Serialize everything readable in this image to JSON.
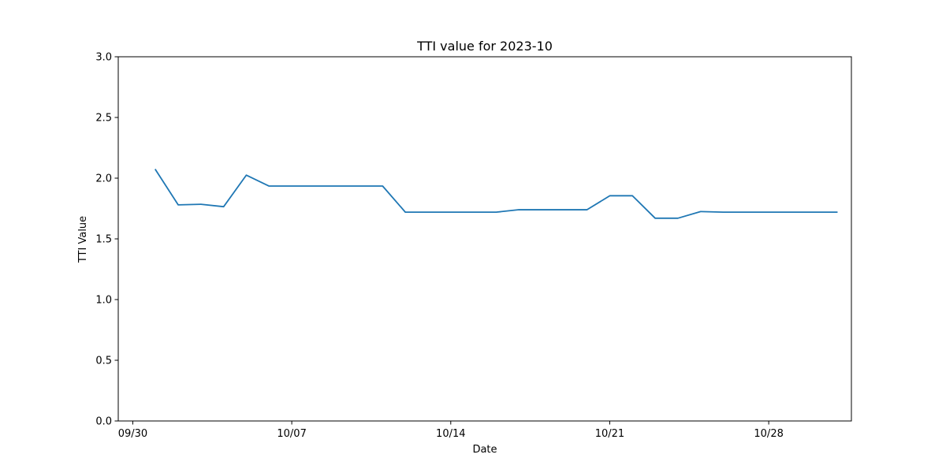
{
  "chart_data": {
    "type": "line",
    "title": "TTI value for 2023-10",
    "xlabel": "Date",
    "ylabel": "TTI Value",
    "ylim": [
      0,
      3.0
    ],
    "y_ticks": [
      "0.0",
      "0.5",
      "1.0",
      "1.5",
      "2.0",
      "2.5",
      "3.0"
    ],
    "x_ticks": [
      {
        "date": "2023-09-30",
        "label": "09/30"
      },
      {
        "date": "2023-10-07",
        "label": "10/07"
      },
      {
        "date": "2023-10-14",
        "label": "10/14"
      },
      {
        "date": "2023-10-21",
        "label": "10/21"
      },
      {
        "date": "2023-10-28",
        "label": "10/28"
      }
    ],
    "grid": false,
    "colors": {
      "line": "#1f77b4"
    },
    "series": [
      {
        "x": [
          "2023-10-01",
          "2023-10-02",
          "2023-10-03",
          "2023-10-04",
          "2023-10-05",
          "2023-10-06",
          "2023-10-07",
          "2023-10-08",
          "2023-10-09",
          "2023-10-10",
          "2023-10-11",
          "2023-10-12",
          "2023-10-13",
          "2023-10-14",
          "2023-10-15",
          "2023-10-16",
          "2023-10-17",
          "2023-10-18",
          "2023-10-19",
          "2023-10-20",
          "2023-10-21",
          "2023-10-22",
          "2023-10-23",
          "2023-10-24",
          "2023-10-25",
          "2023-10-26",
          "2023-10-27",
          "2023-10-28",
          "2023-10-29",
          "2023-10-30",
          "2023-10-31"
        ],
        "values": [
          2.07,
          1.78,
          1.785,
          1.765,
          2.025,
          1.935,
          1.935,
          1.935,
          1.935,
          1.935,
          1.935,
          1.72,
          1.72,
          1.72,
          1.72,
          1.72,
          1.74,
          1.74,
          1.74,
          1.74,
          1.855,
          1.855,
          1.67,
          1.67,
          1.725,
          1.72,
          1.72,
          1.72,
          1.72,
          1.72,
          1.72
        ]
      }
    ]
  }
}
